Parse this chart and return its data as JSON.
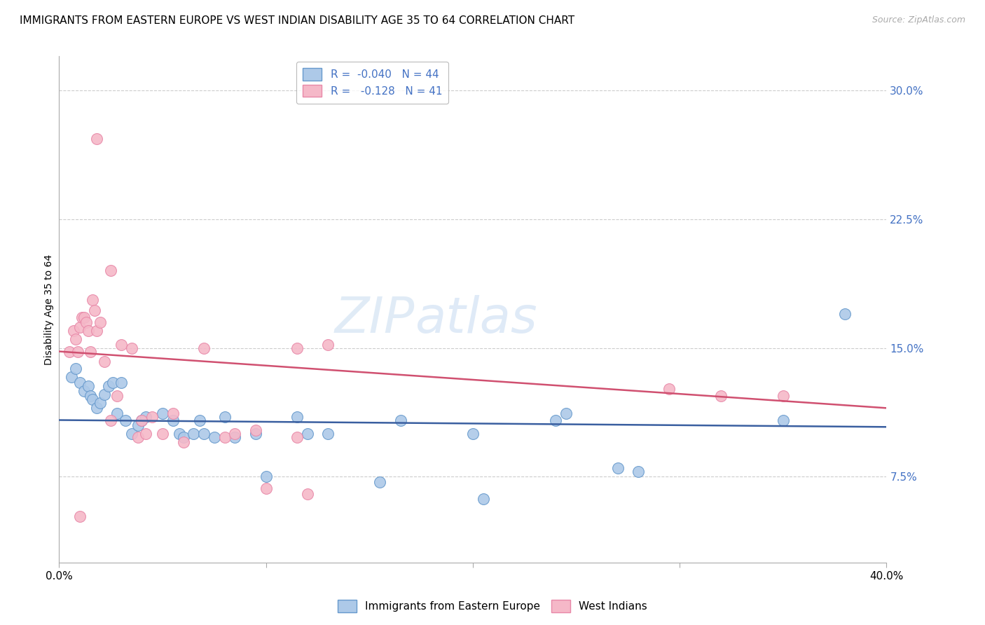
{
  "title": "IMMIGRANTS FROM EASTERN EUROPE VS WEST INDIAN DISABILITY AGE 35 TO 64 CORRELATION CHART",
  "source": "Source: ZipAtlas.com",
  "ylabel": "Disability Age 35 to 64",
  "ytick_labels": [
    "7.5%",
    "15.0%",
    "22.5%",
    "30.0%"
  ],
  "ytick_values": [
    0.075,
    0.15,
    0.225,
    0.3
  ],
  "xlim": [
    0.0,
    0.4
  ],
  "ylim": [
    0.025,
    0.32
  ],
  "watermark_part1": "ZIP",
  "watermark_part2": "atlas",
  "legend_line1": "R =  -0.040   N = 44",
  "legend_line2": "R =   -0.128   N = 41",
  "series1_fill": "#adc9e8",
  "series2_fill": "#f5b8c8",
  "series1_edge": "#6699cc",
  "series2_edge": "#e888a8",
  "series1_line_color": "#3a5fa0",
  "series2_line_color": "#d05070",
  "blue_dots": [
    [
      0.006,
      0.133
    ],
    [
      0.008,
      0.138
    ],
    [
      0.01,
      0.13
    ],
    [
      0.012,
      0.125
    ],
    [
      0.014,
      0.128
    ],
    [
      0.015,
      0.122
    ],
    [
      0.016,
      0.12
    ],
    [
      0.018,
      0.115
    ],
    [
      0.02,
      0.118
    ],
    [
      0.022,
      0.123
    ],
    [
      0.024,
      0.128
    ],
    [
      0.026,
      0.13
    ],
    [
      0.028,
      0.112
    ],
    [
      0.03,
      0.13
    ],
    [
      0.032,
      0.108
    ],
    [
      0.035,
      0.1
    ],
    [
      0.038,
      0.105
    ],
    [
      0.04,
      0.108
    ],
    [
      0.042,
      0.11
    ],
    [
      0.05,
      0.112
    ],
    [
      0.055,
      0.108
    ],
    [
      0.058,
      0.1
    ],
    [
      0.06,
      0.098
    ],
    [
      0.065,
      0.1
    ],
    [
      0.068,
      0.108
    ],
    [
      0.07,
      0.1
    ],
    [
      0.075,
      0.098
    ],
    [
      0.08,
      0.11
    ],
    [
      0.085,
      0.098
    ],
    [
      0.095,
      0.1
    ],
    [
      0.1,
      0.075
    ],
    [
      0.115,
      0.11
    ],
    [
      0.12,
      0.1
    ],
    [
      0.13,
      0.1
    ],
    [
      0.155,
      0.072
    ],
    [
      0.165,
      0.108
    ],
    [
      0.2,
      0.1
    ],
    [
      0.205,
      0.062
    ],
    [
      0.24,
      0.108
    ],
    [
      0.245,
      0.112
    ],
    [
      0.27,
      0.08
    ],
    [
      0.28,
      0.078
    ],
    [
      0.35,
      0.108
    ],
    [
      0.38,
      0.17
    ]
  ],
  "pink_dots": [
    [
      0.005,
      0.148
    ],
    [
      0.007,
      0.16
    ],
    [
      0.008,
      0.155
    ],
    [
      0.009,
      0.148
    ],
    [
      0.01,
      0.162
    ],
    [
      0.011,
      0.168
    ],
    [
      0.012,
      0.168
    ],
    [
      0.013,
      0.165
    ],
    [
      0.014,
      0.16
    ],
    [
      0.015,
      0.148
    ],
    [
      0.016,
      0.178
    ],
    [
      0.017,
      0.172
    ],
    [
      0.018,
      0.16
    ],
    [
      0.02,
      0.165
    ],
    [
      0.022,
      0.142
    ],
    [
      0.025,
      0.108
    ],
    [
      0.028,
      0.122
    ],
    [
      0.03,
      0.152
    ],
    [
      0.035,
      0.15
    ],
    [
      0.038,
      0.098
    ],
    [
      0.04,
      0.108
    ],
    [
      0.042,
      0.1
    ],
    [
      0.045,
      0.11
    ],
    [
      0.05,
      0.1
    ],
    [
      0.055,
      0.112
    ],
    [
      0.06,
      0.095
    ],
    [
      0.07,
      0.15
    ],
    [
      0.08,
      0.098
    ],
    [
      0.085,
      0.1
    ],
    [
      0.095,
      0.102
    ],
    [
      0.1,
      0.068
    ],
    [
      0.115,
      0.098
    ],
    [
      0.12,
      0.065
    ],
    [
      0.13,
      0.152
    ],
    [
      0.018,
      0.272
    ],
    [
      0.025,
      0.195
    ],
    [
      0.115,
      0.15
    ],
    [
      0.295,
      0.126
    ],
    [
      0.32,
      0.122
    ],
    [
      0.35,
      0.122
    ],
    [
      0.01,
      0.052
    ]
  ],
  "blue_line_x": [
    0.0,
    0.4
  ],
  "blue_line_y": [
    0.108,
    0.104
  ],
  "pink_line_x": [
    0.0,
    0.4
  ],
  "pink_line_y": [
    0.148,
    0.115
  ],
  "dot_size": 130,
  "grid_color": "#cccccc",
  "background_color": "#ffffff",
  "title_fontsize": 11,
  "axis_label_fontsize": 10,
  "tick_fontsize": 11,
  "source_fontsize": 9,
  "legend_text_color": "#4472c4"
}
